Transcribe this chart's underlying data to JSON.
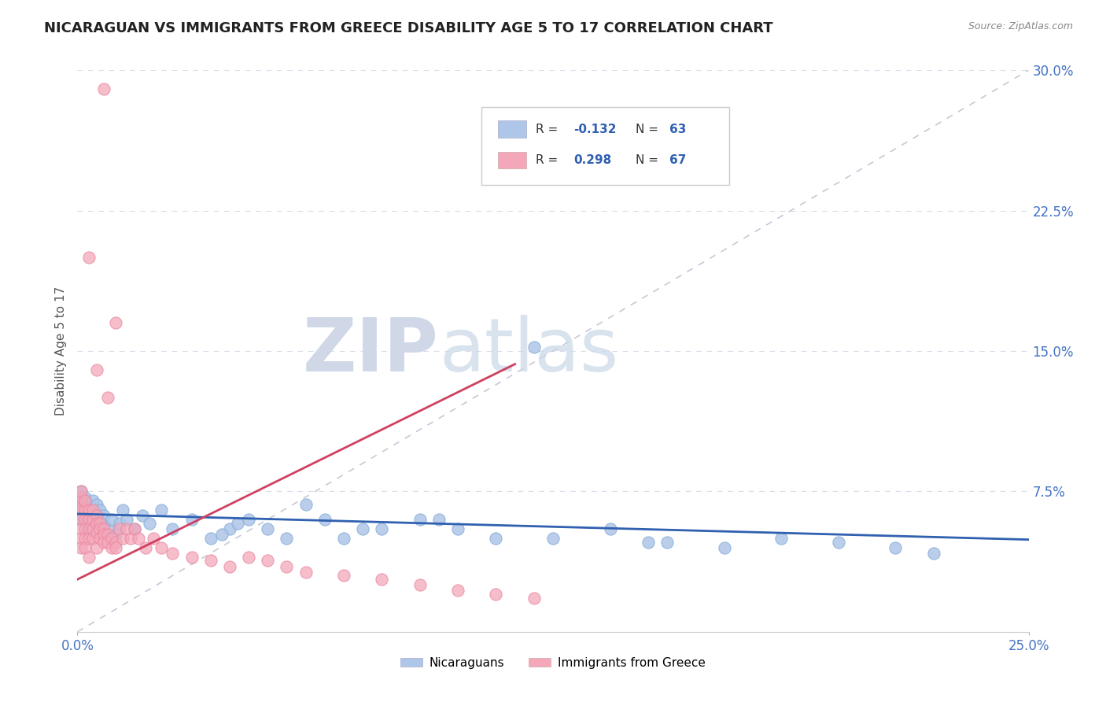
{
  "title": "NICARAGUAN VS IMMIGRANTS FROM GREECE DISABILITY AGE 5 TO 17 CORRELATION CHART",
  "source": "Source: ZipAtlas.com",
  "ylabel": "Disability Age 5 to 17",
  "xlim": [
    0,
    0.25
  ],
  "ylim": [
    0,
    0.3
  ],
  "yticks": [
    0.0,
    0.075,
    0.15,
    0.225,
    0.3
  ],
  "ytick_labels": [
    "",
    "7.5%",
    "15.0%",
    "22.5%",
    "30.0%"
  ],
  "xtick_labels": [
    "0.0%",
    "25.0%"
  ],
  "legend1_R": "-0.132",
  "legend1_N": "63",
  "legend2_R": "0.298",
  "legend2_N": "67",
  "blue_color": "#aec6e8",
  "pink_color": "#f4a7b9",
  "blue_line_color": "#3060b0",
  "pink_line_color": "#d04060",
  "ref_line_color": "#c8c8d8",
  "grid_color": "#d8dce8",
  "watermark_color": "#d0d8e8",
  "title_color": "#222222",
  "source_color": "#888888",
  "tick_color": "#4472c4",
  "nic_x": [
    0.001,
    0.001,
    0.001,
    0.001,
    0.001,
    0.001,
    0.001,
    0.002,
    0.002,
    0.002,
    0.002,
    0.002,
    0.003,
    0.003,
    0.003,
    0.003,
    0.004,
    0.004,
    0.004,
    0.005,
    0.005,
    0.006,
    0.006,
    0.007,
    0.007,
    0.008,
    0.009,
    0.01,
    0.011,
    0.012,
    0.013,
    0.015,
    0.017,
    0.019,
    0.022,
    0.025,
    0.03,
    0.035,
    0.04,
    0.045,
    0.05,
    0.06,
    0.065,
    0.07,
    0.08,
    0.09,
    0.1,
    0.11,
    0.125,
    0.14,
    0.155,
    0.17,
    0.185,
    0.2,
    0.215,
    0.225,
    0.038,
    0.042,
    0.055,
    0.075,
    0.095,
    0.12,
    0.15
  ],
  "nic_y": [
    0.068,
    0.072,
    0.065,
    0.07,
    0.06,
    0.063,
    0.075,
    0.068,
    0.07,
    0.065,
    0.06,
    0.072,
    0.062,
    0.068,
    0.058,
    0.055,
    0.065,
    0.058,
    0.07,
    0.06,
    0.068,
    0.055,
    0.065,
    0.058,
    0.062,
    0.055,
    0.06,
    0.052,
    0.058,
    0.065,
    0.06,
    0.055,
    0.062,
    0.058,
    0.065,
    0.055,
    0.06,
    0.05,
    0.055,
    0.06,
    0.055,
    0.068,
    0.06,
    0.05,
    0.055,
    0.06,
    0.055,
    0.05,
    0.05,
    0.055,
    0.048,
    0.045,
    0.05,
    0.048,
    0.045,
    0.042,
    0.052,
    0.058,
    0.05,
    0.055,
    0.06,
    0.152,
    0.048
  ],
  "greece_x": [
    0.001,
    0.001,
    0.001,
    0.001,
    0.001,
    0.001,
    0.001,
    0.001,
    0.002,
    0.002,
    0.002,
    0.002,
    0.002,
    0.002,
    0.003,
    0.003,
    0.003,
    0.003,
    0.003,
    0.004,
    0.004,
    0.004,
    0.004,
    0.005,
    0.005,
    0.005,
    0.005,
    0.006,
    0.006,
    0.006,
    0.007,
    0.007,
    0.007,
    0.008,
    0.008,
    0.009,
    0.009,
    0.01,
    0.01,
    0.011,
    0.012,
    0.013,
    0.014,
    0.015,
    0.016,
    0.018,
    0.02,
    0.022,
    0.025,
    0.03,
    0.035,
    0.04,
    0.045,
    0.05,
    0.055,
    0.06,
    0.07,
    0.08,
    0.09,
    0.1,
    0.11,
    0.12,
    0.007,
    0.008,
    0.003,
    0.005,
    0.01
  ],
  "greece_y": [
    0.068,
    0.072,
    0.065,
    0.06,
    0.055,
    0.05,
    0.045,
    0.075,
    0.065,
    0.06,
    0.055,
    0.05,
    0.07,
    0.045,
    0.065,
    0.06,
    0.055,
    0.05,
    0.04,
    0.065,
    0.06,
    0.055,
    0.05,
    0.062,
    0.058,
    0.053,
    0.045,
    0.058,
    0.055,
    0.05,
    0.055,
    0.052,
    0.048,
    0.052,
    0.048,
    0.05,
    0.045,
    0.048,
    0.045,
    0.055,
    0.05,
    0.055,
    0.05,
    0.055,
    0.05,
    0.045,
    0.05,
    0.045,
    0.042,
    0.04,
    0.038,
    0.035,
    0.04,
    0.038,
    0.035,
    0.032,
    0.03,
    0.028,
    0.025,
    0.022,
    0.02,
    0.018,
    0.29,
    0.125,
    0.2,
    0.14,
    0.165
  ]
}
